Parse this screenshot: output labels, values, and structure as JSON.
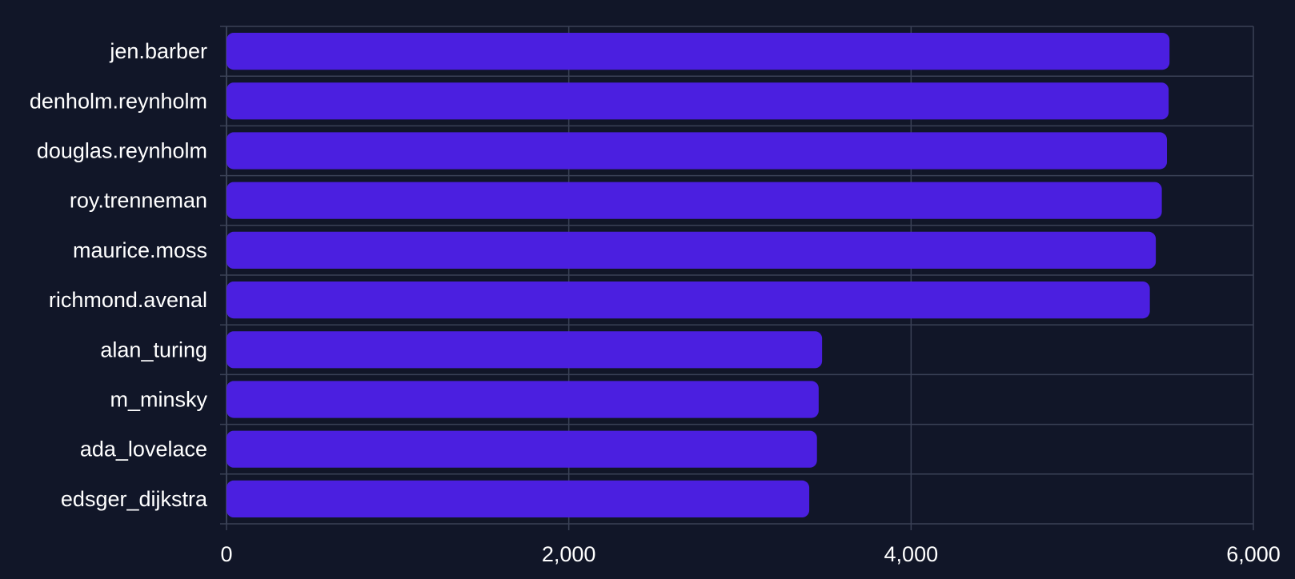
{
  "chart_data": {
    "type": "bar",
    "orientation": "horizontal",
    "title": "",
    "xlabel": "",
    "ylabel": "",
    "categories": [
      "jen.barber",
      "denholm.reynholm",
      "douglas.reynholm",
      "roy.trenneman",
      "maurice.moss",
      "richmond.avenal",
      "alan_turing",
      "m_minsky",
      "ada_lovelace",
      "edsger_dijkstra"
    ],
    "values": [
      5510,
      5505,
      5495,
      5465,
      5430,
      5395,
      3480,
      3460,
      3450,
      3405
    ],
    "xlim": [
      0,
      6000
    ],
    "xticks": [
      0,
      2000,
      4000,
      6000
    ],
    "xtick_labels": [
      "0",
      "2,000",
      "4,000",
      "6,000"
    ],
    "grid": true,
    "colors": {
      "background": "#111628",
      "bar": "#4b1fe0",
      "grid": "#3a4156",
      "text": "#ffffff"
    }
  }
}
